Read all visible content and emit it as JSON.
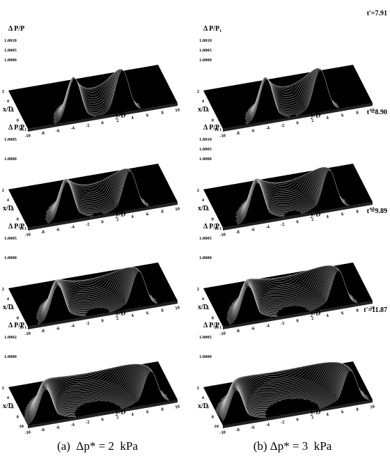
{
  "x_ticks": [
    "2",
    "4",
    "6",
    "8",
    "10"
  ],
  "y_ticks": [
    "-10",
    "-8",
    "-6",
    "-4",
    "-2",
    "0",
    "2",
    "4",
    "6",
    "8",
    "10"
  ],
  "rows": [
    {
      "left": {
        "z_label": "Δ P/P",
        "z_ticks": [
          "1.0010",
          "1.0005",
          "1.0000"
        ],
        "x_label": "x/D",
        "y_label": "y/D"
      },
      "right": {
        "time": "t'=7.91",
        "z_label": "Δ P/P₁",
        "z_ticks": [
          "1.0010",
          "1.0005",
          "1.0000"
        ],
        "x_label": "x/D",
        "y_label": "y/D"
      }
    },
    {
      "left": {
        "z_label": "Δ P/P₁",
        "z_ticks": [
          "1.0005",
          "1.0000"
        ],
        "x_label": "x/D",
        "y_label": "y/D"
      },
      "right": {
        "time": "t'=8.90",
        "z_label": "Δ P/P₁",
        "z_ticks": [
          "1.0010",
          "1.0005",
          "1.0000"
        ],
        "x_label": "x/D",
        "y_label": "y/D"
      }
    },
    {
      "left": {
        "z_label": "Δ P/P₁",
        "z_ticks": [
          "1.0005",
          "1.0000"
        ],
        "x_label": "x/D",
        "y_label": "y/D"
      },
      "right": {
        "time": "t'=9.89",
        "z_label": "Δ P/P₁",
        "z_ticks": [
          "1.0005",
          "1.0000"
        ],
        "x_label": "x/D",
        "y_label": "y/D"
      }
    },
    {
      "left": {
        "z_label": "Δ P/P₁",
        "z_ticks": [
          "1.0002",
          "1.0000"
        ],
        "x_label": "x/D",
        "y_label": "y/D"
      },
      "right": {
        "time": "t'=11.87",
        "z_label": "Δ P/P₁",
        "z_ticks": [
          "1.0005",
          "1.0000"
        ],
        "x_label": "x/D",
        "y_label": "y/D"
      }
    }
  ],
  "captions": {
    "left": "(a)  Δp* = 2  kPa",
    "right": "(b) Δp* = 3  kPa"
  }
}
